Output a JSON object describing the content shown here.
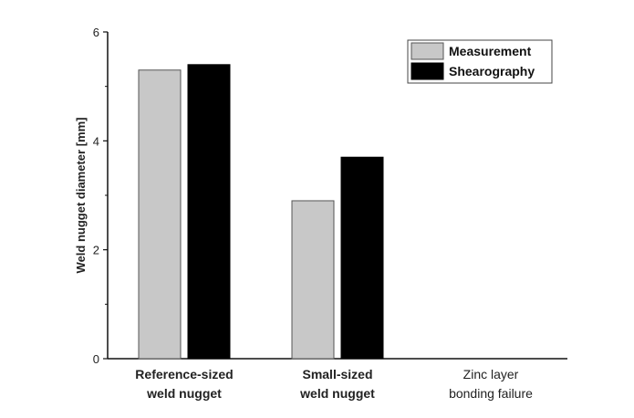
{
  "chart_data": {
    "type": "bar",
    "title": "",
    "xlabel": "",
    "ylabel": "Weld nugget diameter [mm]",
    "ylim": [
      0,
      6
    ],
    "yticks": [
      0,
      2,
      4,
      6
    ],
    "grid": false,
    "legend_position": "top-right",
    "categories": [
      [
        "Reference-sized",
        "weld nugget"
      ],
      [
        "Small-sized",
        "weld nugget"
      ],
      [
        "Zinc layer",
        "bonding failure"
      ]
    ],
    "series": [
      {
        "name": "Measurement",
        "color": "#c8c8c8",
        "values": [
          5.3,
          2.9,
          0
        ]
      },
      {
        "name": "Shearography",
        "color": "#000000",
        "values": [
          5.4,
          3.7,
          0
        ]
      }
    ]
  }
}
